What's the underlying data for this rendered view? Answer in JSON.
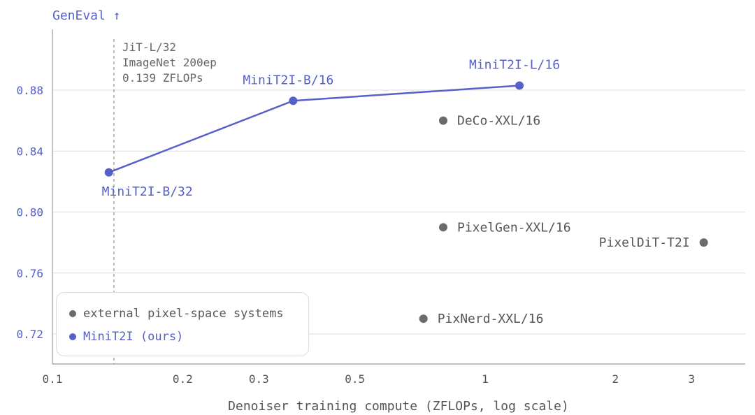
{
  "chart_data": {
    "type": "scatter",
    "title": "",
    "ylabel": "GenEval ↑",
    "xlabel": "Denoiser training compute (ZFLOPs, log scale)",
    "xscale": "log",
    "xlim": [
      0.1,
      4.2
    ],
    "ylim": [
      0.7,
      0.905
    ],
    "xticks": [
      0.1,
      0.2,
      0.3,
      0.5,
      1,
      2,
      3
    ],
    "xtick_labels": [
      "0.1",
      "0.2",
      "0.3",
      "0.5",
      "1",
      "2",
      "3"
    ],
    "yticks": [
      0.72,
      0.76,
      0.8,
      0.84,
      0.88
    ],
    "ytick_labels": [
      "0.72",
      "0.76",
      "0.80",
      "0.84",
      "0.88"
    ],
    "grid": "horizontal",
    "legend_position": "bottom-left",
    "reference_line": {
      "x": 0.139,
      "lines": [
        "JiT-L/32",
        "ImageNet 200ep",
        "0.139 ZFLOPs"
      ]
    },
    "series": [
      {
        "name": "MiniT2I (ours)",
        "color": "#5560c8",
        "connected": true,
        "points": [
          {
            "label": "MiniT2I-B/32",
            "x": 0.135,
            "y": 0.826
          },
          {
            "label": "MiniT2I-B/16",
            "x": 0.36,
            "y": 0.873
          },
          {
            "label": "MiniT2I-L/16",
            "x": 1.2,
            "y": 0.883
          }
        ]
      },
      {
        "name": "external pixel-space systems",
        "color": "#6b6b6b",
        "connected": false,
        "points": [
          {
            "label": "DeCo-XXL/16",
            "x": 0.8,
            "y": 0.86
          },
          {
            "label": "PixelGen-XXL/16",
            "x": 0.8,
            "y": 0.79
          },
          {
            "label": "PixelDiT-T2I",
            "x": 3.2,
            "y": 0.78
          },
          {
            "label": "PixNerd-XXL/16",
            "x": 0.72,
            "y": 0.73
          }
        ]
      }
    ]
  },
  "legend": {
    "items": [
      {
        "label": "external pixel-space systems",
        "color": "#6b6b6b"
      },
      {
        "label": "MiniT2I (ours)",
        "color": "#5560c8"
      }
    ]
  }
}
